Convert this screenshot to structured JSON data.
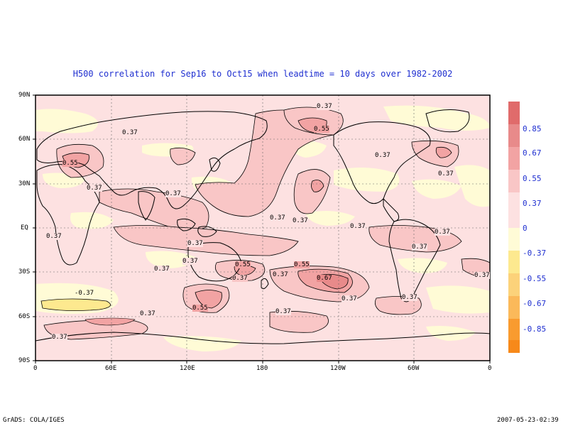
{
  "title": "H500 correlation for  Sep16 to Oct15  when leadtime =  10 days over 1982-2002",
  "lat_labels": [
    "90N",
    "60N",
    "30N",
    "EQ",
    "30S",
    "60S",
    "90S"
  ],
  "lon_labels": [
    "0",
    "60E",
    "120E",
    "180",
    "120W",
    "60W",
    "0"
  ],
  "colorbar": {
    "labels": [
      "0.85",
      "0.67",
      "0.55",
      "0.37",
      "0",
      "-0.37",
      "-0.55",
      "-0.67",
      "-0.85"
    ],
    "colors": [
      "#e06b6b",
      "#e88a8a",
      "#f2a3a3",
      "#f9c6c6",
      "#fde1e1",
      "#fffbd6",
      "#fde98f",
      "#fcd27a",
      "#fbb95a",
      "#f99b2f",
      "#f7891a"
    ]
  },
  "contour_labels": {
    "nh_037_a": "0.37",
    "nh_037_b": "0.37",
    "nh_037_c": "0.37",
    "nh_037_d": "0.37",
    "nh_055_a": "0.55",
    "nh_055_b": "0.55",
    "nh_037_e": "0.37",
    "nh_037_f": "0.37",
    "eq_037_a": "0.37",
    "eq_037_b": "0.37",
    "eq_037_c": "0.37",
    "eq_037_d": "0.37",
    "eq_037_e": "0.37",
    "eq_037_f": "0.37",
    "eq_037_g": "0.37",
    "sh_037_a": "0.37",
    "sh_037_b": "0.37",
    "sh_055_a": "0.55",
    "sh_037_c": "0.37",
    "sh_037_d": "0.37",
    "sh_055_b": "0.55",
    "sh_067": "0.67",
    "sh_037_e": "0.37",
    "sh_neg037": "-0.37",
    "sh_037_f": "0.37",
    "sh_055_c": "0.55",
    "sh_037_g": "0.37",
    "sh_037_h": "0.37",
    "sh_037_i": "0.37",
    "sh_037_j": "0.37"
  },
  "footer_left": "GrADS: COLA/IGES",
  "footer_right": "2007-05-23-02:39"
}
